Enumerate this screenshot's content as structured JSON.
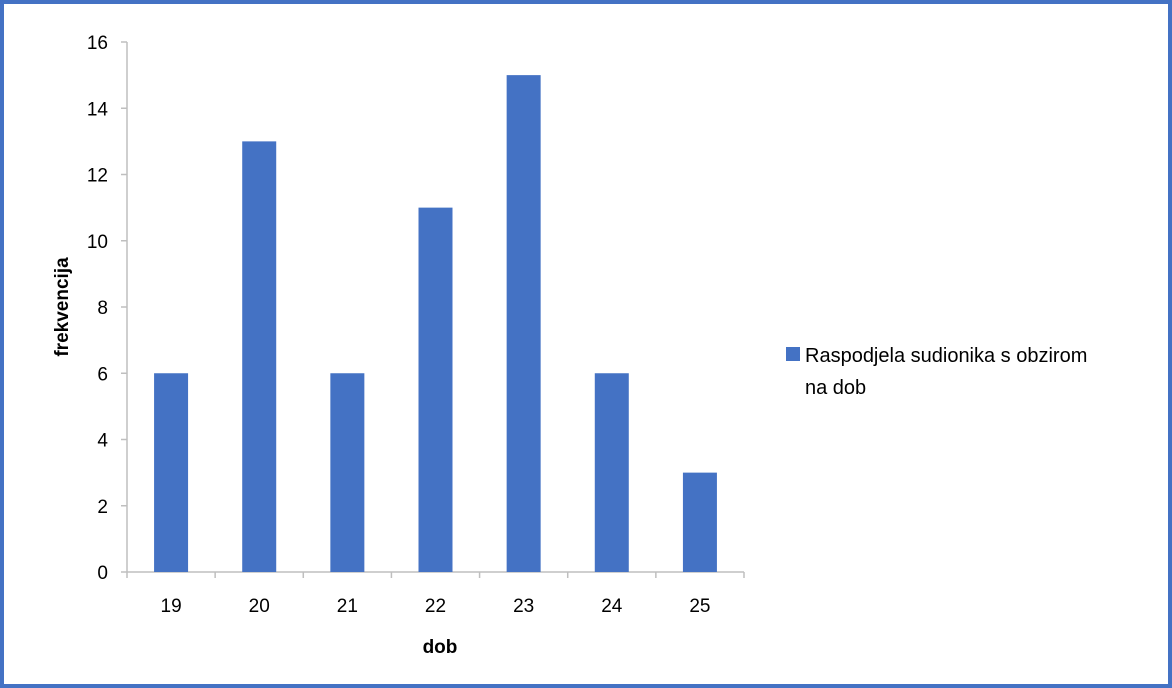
{
  "chart_data": {
    "type": "bar",
    "categories": [
      "19",
      "20",
      "21",
      "22",
      "23",
      "24",
      "25"
    ],
    "series": [
      {
        "name": "Raspodjela sudionika s obzirom na dob",
        "values": [
          6,
          13,
          6,
          11,
          15,
          6,
          3
        ],
        "color": "#4472c4"
      }
    ],
    "xlabel": "dob",
    "ylabel": "frekvencija",
    "ylim": [
      0,
      16
    ],
    "yticks": [
      0,
      2,
      4,
      6,
      8,
      10,
      12,
      14,
      16
    ],
    "grid": false,
    "legend_position": "right"
  },
  "legend": {
    "line1": "Raspodjela sudionika s obzirom",
    "line2": "na dob"
  },
  "colors": {
    "frame": "#4472c4",
    "bar": "#4472c4",
    "axis": "#bfbfbf"
  }
}
